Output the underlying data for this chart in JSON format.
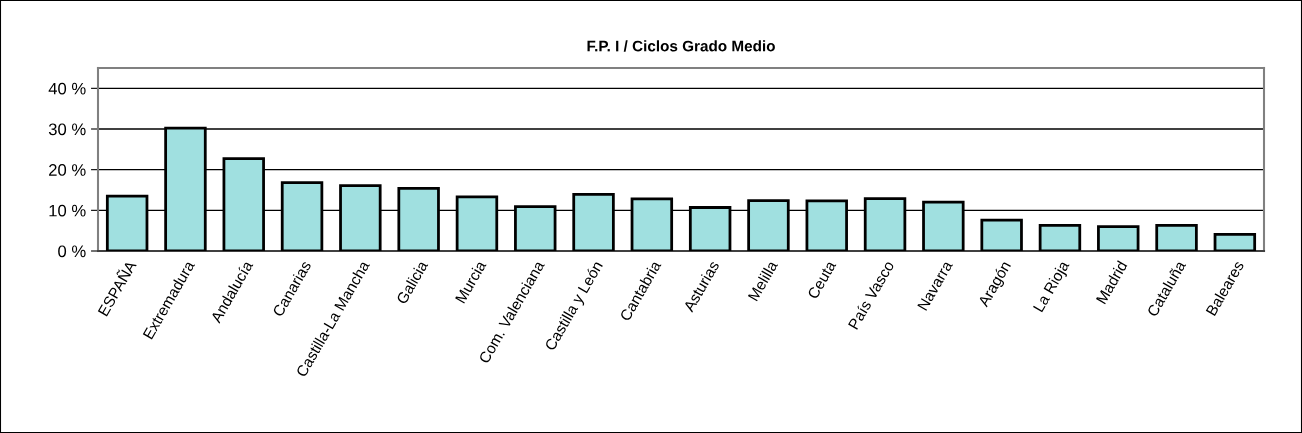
{
  "chart_data": {
    "type": "bar",
    "title": "F.P. I / Ciclos Grado Medio",
    "categories": [
      "ESPAÑA",
      "Extremadura",
      "Andalucía",
      "Canarias",
      "Castilla-La Mancha",
      "Galicia",
      "Murcia",
      "Com. Valenciana",
      "Castilla y León",
      "Cantabria",
      "Asturias",
      "Melilla",
      "Ceuta",
      "País Vasco",
      "Navarra",
      "Aragón",
      "La Rioja",
      "Madrid",
      "Cataluña",
      "Baleares"
    ],
    "values": [
      13.5,
      30.2,
      22.7,
      16.8,
      16.1,
      15.4,
      13.3,
      10.9,
      13.9,
      12.8,
      10.7,
      12.4,
      12.3,
      12.9,
      12.0,
      7.6,
      6.3,
      6.0,
      6.3,
      4.1
    ],
    "color": "#a0e0e0",
    "ylim": [
      0,
      45
    ],
    "yticks": [
      {
        "value": 0,
        "label": "0 %"
      },
      {
        "value": 10,
        "label": "10 %"
      },
      {
        "value": 20,
        "label": "20 %"
      },
      {
        "value": 30,
        "label": "30 %"
      },
      {
        "value": 40,
        "label": "40 %"
      }
    ],
    "grid": "y",
    "legend": false
  }
}
